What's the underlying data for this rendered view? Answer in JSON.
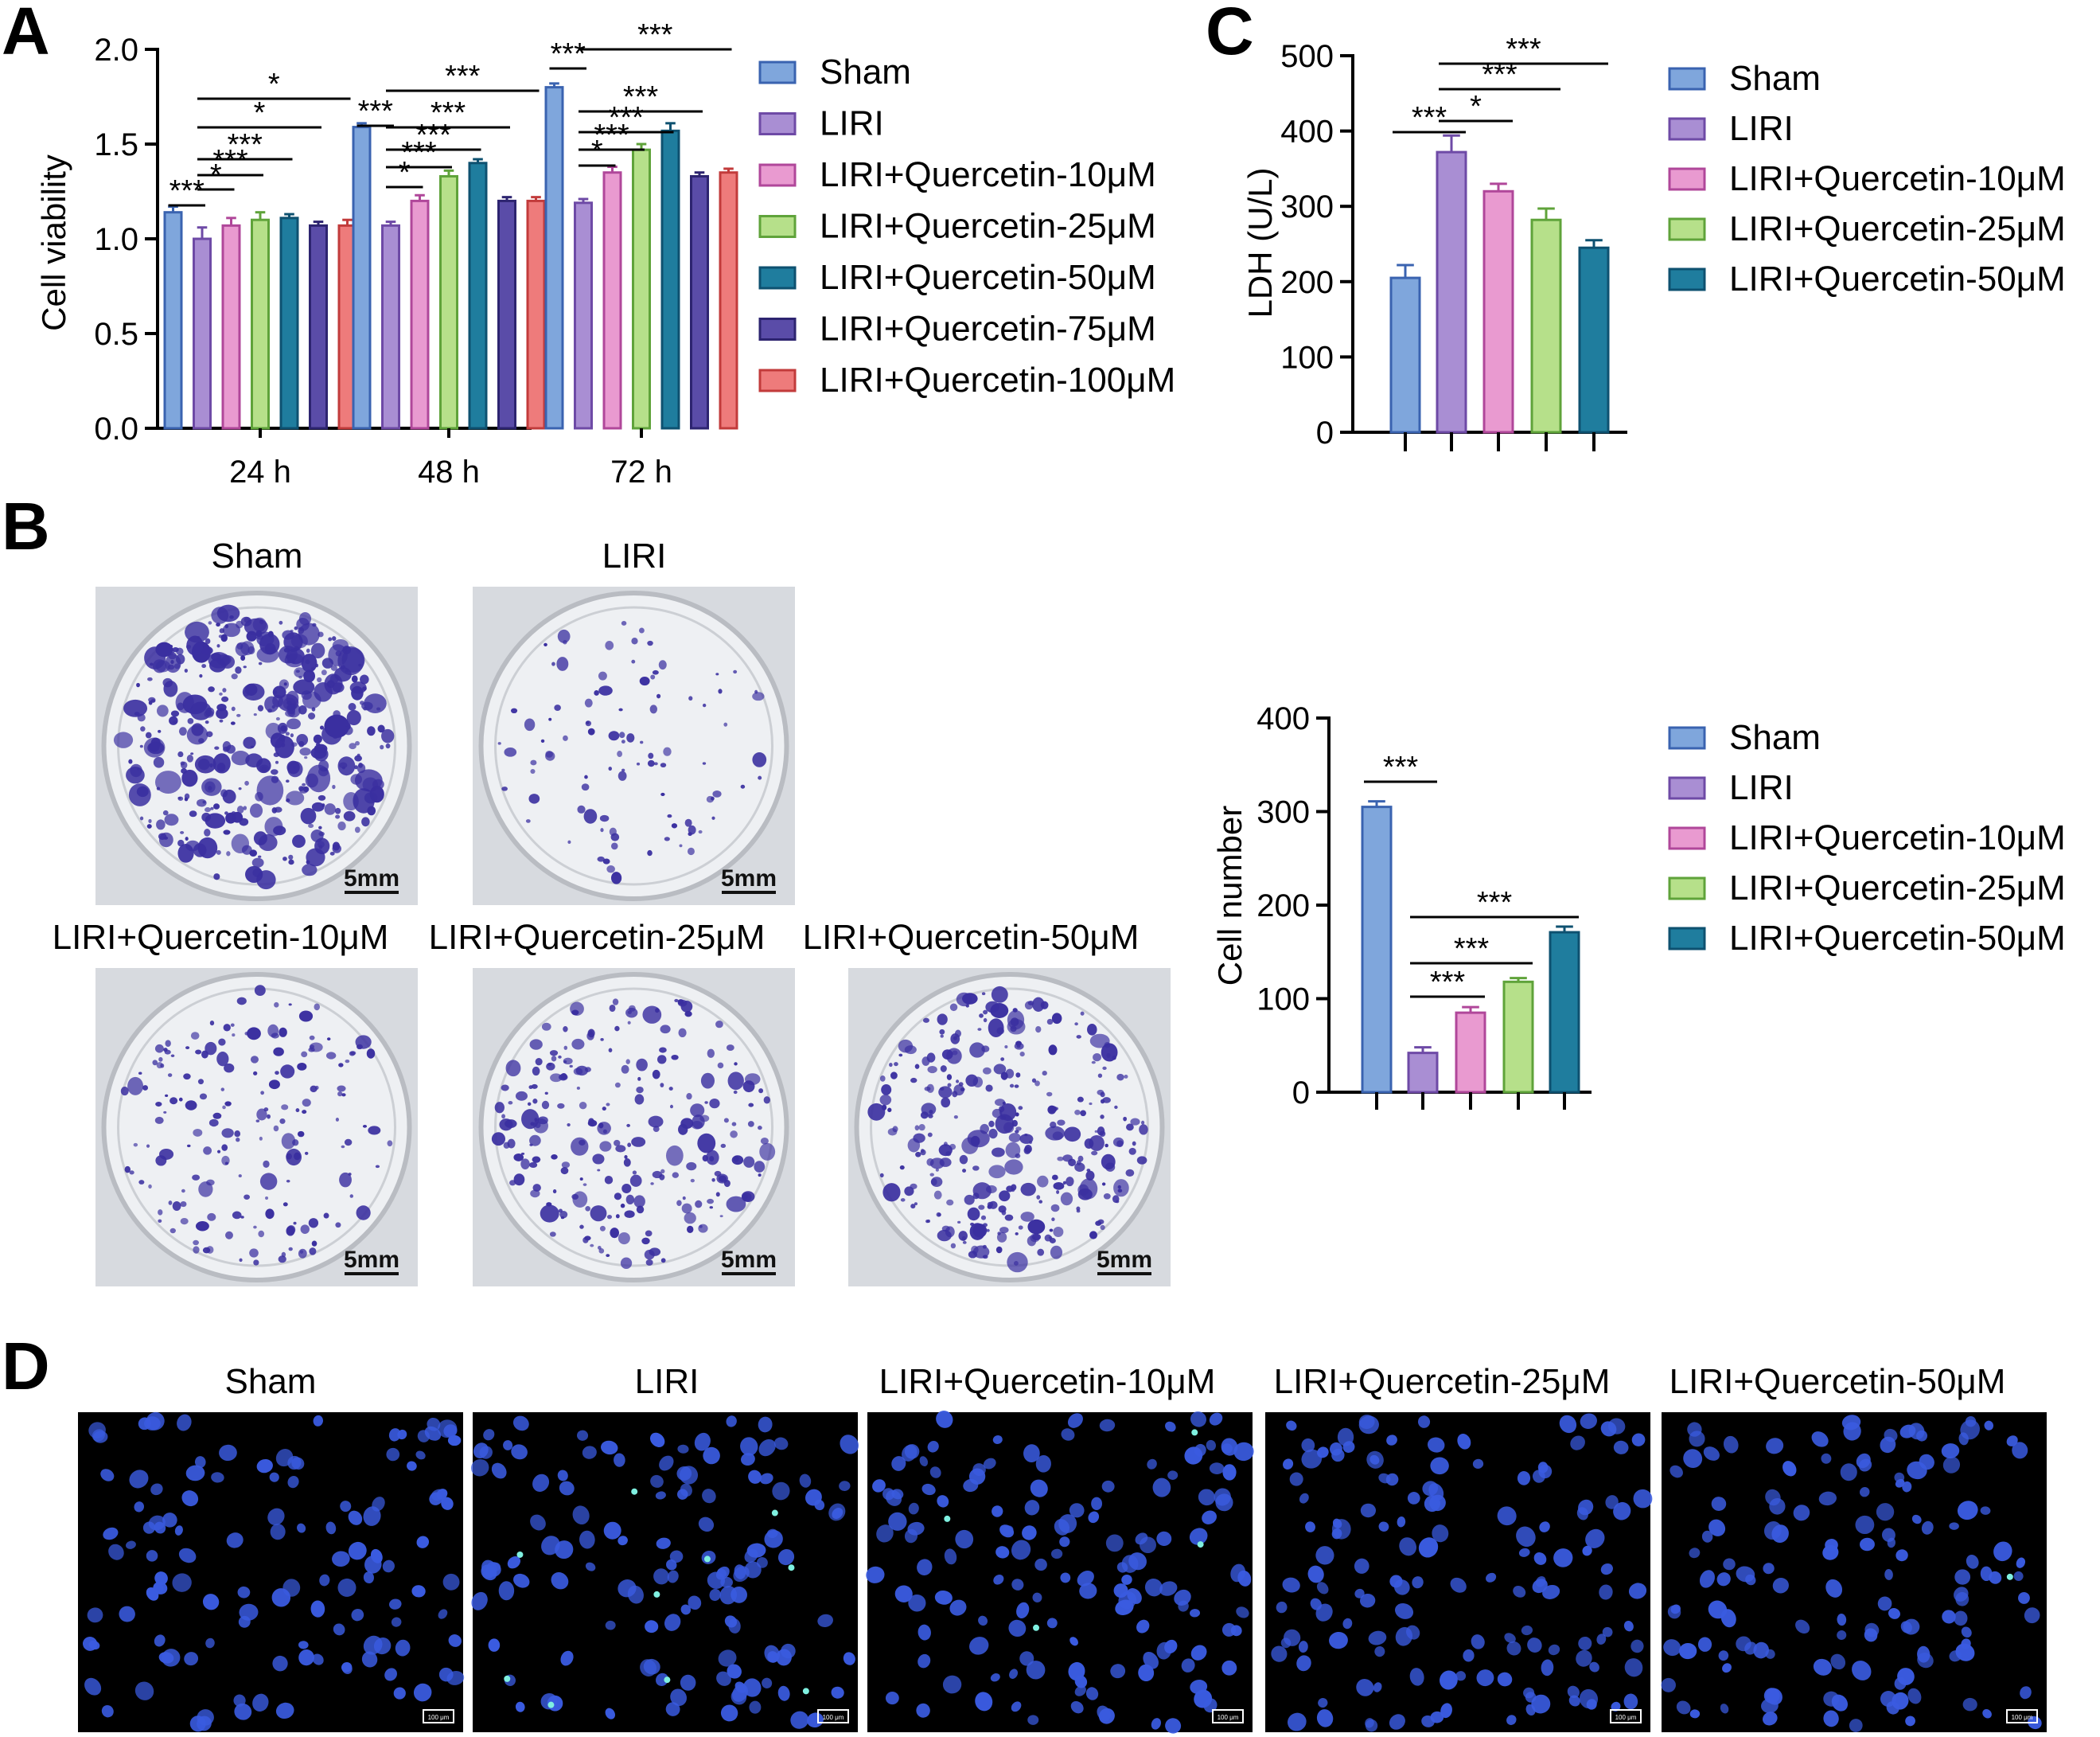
{
  "panel_labels": {
    "a": "A",
    "b": "B",
    "c": "C",
    "d": "D"
  },
  "colors": {
    "sham": "#7FA6DC",
    "liri": "#A98ED3",
    "q10": "#E99AD0",
    "q25": "#B6E08A",
    "q50": "#1F7D9E",
    "q75": "#5A4CA8",
    "q100": "#EE7B7B",
    "sham_edge": "#3A63B0",
    "liri_edge": "#6E4AA6",
    "q10_edge": "#B0479A",
    "q25_edge": "#5FA33A",
    "q50_edge": "#0E5170",
    "q75_edge": "#2D2470",
    "q100_edge": "#C23B3B",
    "fluor_bg": "#000000",
    "nucleus": "#3A5BE0",
    "dish_bg": "#E6E8EC",
    "colony": "#3A2FA0"
  },
  "chart_data": [
    {
      "id": "A",
      "type": "bar",
      "title": "",
      "xlabel": "",
      "ylabel": "Cell viability",
      "ylim": [
        0,
        2.0
      ],
      "yticks": [
        "0.0",
        "0.5",
        "1.0",
        "1.5",
        "2.0"
      ],
      "categories": [
        "24 h",
        "48 h",
        "72 h"
      ],
      "series": [
        {
          "name": "Sham",
          "values": [
            1.14,
            1.59,
            1.8
          ],
          "errors": [
            0.03,
            0.02,
            0.02
          ]
        },
        {
          "name": "LIRI",
          "values": [
            1.0,
            1.07,
            1.19
          ],
          "errors": [
            0.06,
            0.02,
            0.02
          ]
        },
        {
          "name": "LIRI+Quercetin-10μM",
          "values": [
            1.07,
            1.2,
            1.35
          ],
          "errors": [
            0.04,
            0.03,
            0.03
          ]
        },
        {
          "name": "LIRI+Quercetin-25μM",
          "values": [
            1.1,
            1.33,
            1.47
          ],
          "errors": [
            0.04,
            0.03,
            0.03
          ]
        },
        {
          "name": "LIRI+Quercetin-50μM",
          "values": [
            1.11,
            1.4,
            1.57
          ],
          "errors": [
            0.02,
            0.02,
            0.04
          ]
        },
        {
          "name": "LIRI+Quercetin-75μM",
          "values": [
            1.07,
            1.2,
            1.33
          ],
          "errors": [
            0.02,
            0.02,
            0.02
          ]
        },
        {
          "name": "LIRI+Quercetin-100μM",
          "values": [
            1.07,
            1.2,
            1.35
          ],
          "errors": [
            0.03,
            0.02,
            0.02
          ]
        }
      ],
      "significance": [
        {
          "group": 0,
          "from": 0,
          "to": 1,
          "label": "***"
        },
        {
          "group": 0,
          "from": 1,
          "to": 2,
          "label": "*"
        },
        {
          "group": 0,
          "from": 1,
          "to": 3,
          "label": "***"
        },
        {
          "group": 0,
          "from": 1,
          "to": 4,
          "label": "***"
        },
        {
          "group": 0,
          "from": 1,
          "to": 5,
          "label": "*"
        },
        {
          "group": 0,
          "from": 1,
          "to": 6,
          "label": "*"
        },
        {
          "group": 1,
          "from": 0,
          "to": 1,
          "label": "***"
        },
        {
          "group": 1,
          "from": 1,
          "to": 2,
          "label": "*"
        },
        {
          "group": 1,
          "from": 1,
          "to": 3,
          "label": "***"
        },
        {
          "group": 1,
          "from": 1,
          "to": 4,
          "label": "***"
        },
        {
          "group": 1,
          "from": 1,
          "to": 5,
          "label": "***"
        },
        {
          "group": 1,
          "from": 1,
          "to": 6,
          "label": "***"
        },
        {
          "group": 2,
          "from": 0,
          "to": 1,
          "label": "***"
        },
        {
          "group": 2,
          "from": 1,
          "to": 2,
          "label": "*"
        },
        {
          "group": 2,
          "from": 1,
          "to": 3,
          "label": "***"
        },
        {
          "group": 2,
          "from": 1,
          "to": 4,
          "label": "***"
        },
        {
          "group": 2,
          "from": 1,
          "to": 5,
          "label": "***"
        },
        {
          "group": 2,
          "from": 1,
          "to": 6,
          "label": "***"
        }
      ],
      "legend_position": "right"
    },
    {
      "id": "C",
      "type": "bar",
      "title": "",
      "xlabel": "",
      "ylabel": "LDH (U/L)",
      "ylim": [
        0,
        500
      ],
      "yticks": [
        "0",
        "100",
        "200",
        "300",
        "400",
        "500"
      ],
      "categories": [
        "Sham",
        "LIRI",
        "LIRI+Quercetin-10μM",
        "LIRI+Quercetin-25μM",
        "LIRI+Quercetin-50μM"
      ],
      "values": [
        205,
        372,
        320,
        282,
        245
      ],
      "errors": [
        17,
        22,
        10,
        15,
        10
      ],
      "significance": [
        {
          "from": 0,
          "to": 1,
          "label": "***"
        },
        {
          "from": 1,
          "to": 2,
          "label": "*"
        },
        {
          "from": 1,
          "to": 3,
          "label": "***"
        },
        {
          "from": 1,
          "to": 4,
          "label": "***"
        }
      ],
      "legend_position": "right"
    },
    {
      "id": "B-quant",
      "type": "bar",
      "title": "",
      "xlabel": "",
      "ylabel": "Cell number",
      "ylim": [
        0,
        400
      ],
      "yticks": [
        "0",
        "100",
        "200",
        "300",
        "400"
      ],
      "categories": [
        "Sham",
        "LIRI",
        "LIRI+Quercetin-10μM",
        "LIRI+Quercetin-25μM",
        "LIRI+Quercetin-50μM"
      ],
      "values": [
        305,
        42,
        85,
        118,
        171
      ],
      "errors": [
        6,
        6,
        6,
        4,
        6
      ],
      "significance": [
        {
          "from": 0,
          "to": 1,
          "label": "***"
        },
        {
          "from": 1,
          "to": 2,
          "label": "***"
        },
        {
          "from": 1,
          "to": 3,
          "label": "***"
        },
        {
          "from": 1,
          "to": 4,
          "label": "***"
        }
      ],
      "legend_position": "right"
    }
  ],
  "panel_b": {
    "titles": [
      "Sham",
      "LIRI",
      "LIRI+Quercetin-10μM",
      "LIRI+Quercetin-25μM",
      "LIRI+Quercetin-50μM"
    ],
    "scale_bar": "5mm",
    "colony_density": [
      0.95,
      0.15,
      0.35,
      0.5,
      0.7
    ]
  },
  "panel_d": {
    "titles": [
      "Sham",
      "LIRI",
      "LIRI+Quercetin-10μM",
      "LIRI+Quercetin-25μM",
      "LIRI+Quercetin-50μM"
    ],
    "scale_bar": "100 μm"
  }
}
